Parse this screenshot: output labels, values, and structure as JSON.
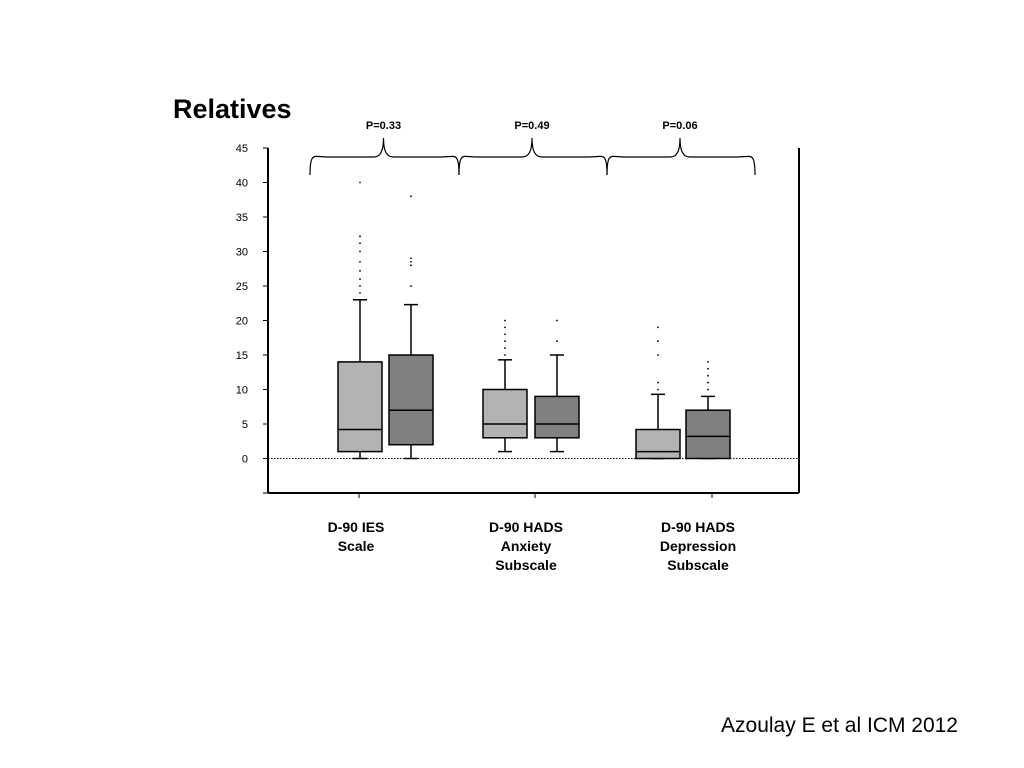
{
  "slide": {
    "title": "Relatives",
    "citation": "Azoulay E et al ICM 2012"
  },
  "chart_data": {
    "type": "box",
    "ylim": [
      -5,
      45
    ],
    "yticks": [
      45,
      40,
      35,
      30,
      25,
      20,
      15,
      10,
      5,
      0
    ],
    "reference_line": 0,
    "colors": {
      "light": "#b3b3b3",
      "dark": "#808080"
    },
    "groups": [
      {
        "label": "D-90 IES\nScale",
        "p_value": "P=0.33",
        "boxes": [
          {
            "shade": "light",
            "min": 0,
            "q1": 1,
            "median": 4.2,
            "q3": 14,
            "max": 23,
            "outliers": [
              24,
              25,
              26,
              27.2,
              28.5,
              30,
              31.2,
              32.2,
              40
            ]
          },
          {
            "shade": "dark",
            "min": 0,
            "q1": 2,
            "median": 7,
            "q3": 15,
            "max": 22.3,
            "outliers": [
              25,
              28,
              28.5,
              29,
              38
            ]
          }
        ]
      },
      {
        "label": "D-90 HADS\nAnxiety\nSubscale",
        "p_value": "P=0.49",
        "boxes": [
          {
            "shade": "light",
            "min": 1,
            "q1": 3,
            "median": 5,
            "q3": 10,
            "max": 14.3,
            "outliers": [
              15,
              16,
              17,
              18,
              19,
              20
            ]
          },
          {
            "shade": "dark",
            "min": 1,
            "q1": 3,
            "median": 5,
            "q3": 9,
            "max": 15,
            "outliers": [
              17,
              20
            ]
          }
        ]
      },
      {
        "label": "D-90 HADS\nDepression\nSubscale",
        "p_value": "P=0.06",
        "boxes": [
          {
            "shade": "light",
            "min": 0,
            "q1": 0,
            "median": 1,
            "q3": 4.2,
            "max": 9.3,
            "outliers": [
              10,
              11,
              15,
              17,
              19
            ]
          },
          {
            "shade": "dark",
            "min": 0,
            "q1": 0,
            "median": 3.2,
            "q3": 7,
            "max": 9,
            "outliers": [
              10,
              11,
              12,
              13,
              14
            ]
          }
        ]
      }
    ]
  }
}
